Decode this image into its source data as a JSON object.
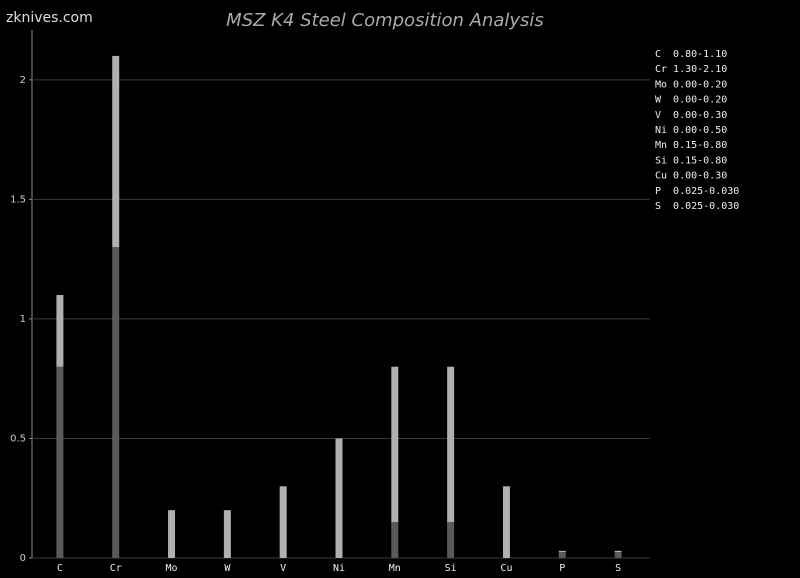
{
  "watermark": "zknives.com",
  "chart_data": {
    "type": "range-bar",
    "title": "MSZ K4 Steel Composition Analysis",
    "categories": [
      "C",
      "Cr",
      "Mo",
      "W",
      "V",
      "Ni",
      "Mn",
      "Si",
      "Cu",
      "P",
      "S"
    ],
    "min_values": [
      0.8,
      1.3,
      0,
      0,
      0,
      0,
      0.15,
      0.15,
      0,
      0.025,
      0.025
    ],
    "max_values": [
      1.1,
      2.1,
      0.2,
      0.2,
      0.3,
      0.5,
      0.8,
      0.8,
      0.3,
      0.03,
      0.03
    ],
    "min_color": "#5a5a5a",
    "max_color": "#b0b0b0",
    "ylim": [
      0,
      2.2
    ],
    "yticks": [
      0,
      0.5,
      1,
      1.5,
      2
    ],
    "grid": true,
    "legend": [
      "C  0.80-1.10",
      "Cr 1.30-2.10",
      "Mo 0.00-0.20",
      "W  0.00-0.20",
      "V  0.00-0.30",
      "Ni 0.00-0.50",
      "Mn 0.15-0.80",
      "Si 0.15-0.80",
      "Cu 0.00-0.30",
      "P  0.025-0.030",
      "S  0.025-0.030"
    ]
  }
}
